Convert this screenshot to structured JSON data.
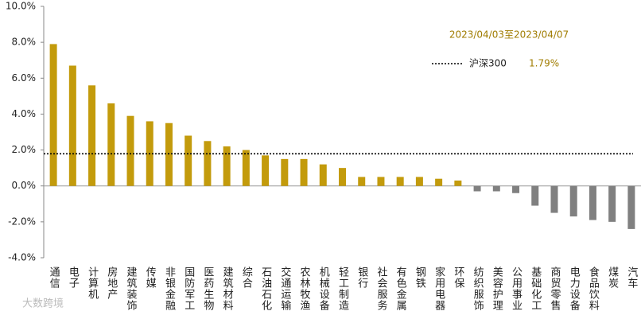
{
  "chart_data": {
    "type": "bar",
    "annotation": "2023/04/03至2023/04/07",
    "watermark": "大数跨境",
    "categories": [
      "通信",
      "电子",
      "计算机",
      "房地产",
      "建筑装饰",
      "传媒",
      "非银金融",
      "国防军工",
      "医药生物",
      "建筑材料",
      "综合",
      "石油石化",
      "交通运输",
      "农林牧渔",
      "机械设备",
      "轻工制造",
      "银行",
      "社会服务",
      "有色金属",
      "钢铁",
      "家用电器",
      "环保",
      "纺织服饰",
      "美容护理",
      "公用事业",
      "基础化工",
      "商贸零售",
      "电力设备",
      "食品饮料",
      "煤炭",
      "汽车"
    ],
    "values": [
      7.9,
      6.7,
      5.6,
      4.6,
      3.9,
      3.6,
      3.5,
      2.8,
      2.5,
      2.2,
      2.0,
      1.7,
      1.5,
      1.5,
      1.2,
      1.0,
      0.5,
      0.5,
      0.5,
      0.5,
      0.4,
      0.3,
      -0.3,
      -0.3,
      -0.4,
      -1.1,
      -1.5,
      -1.7,
      -1.9,
      -2.0,
      -2.4
    ],
    "positive_color": "#c39b0c",
    "negative_color": "#808080",
    "reference": {
      "name": "沪深300",
      "value": 1.79,
      "value_label": "1.79%",
      "color": "#000000"
    },
    "ylim": [
      -4,
      10
    ],
    "yticks": [
      {
        "value": -4,
        "label": "-4.0%"
      },
      {
        "value": -2,
        "label": "-2.0%"
      },
      {
        "value": 0,
        "label": "0.0%"
      },
      {
        "value": 2,
        "label": "2.0%"
      },
      {
        "value": 4,
        "label": "4.0%"
      },
      {
        "value": 6,
        "label": "6.0%"
      },
      {
        "value": 8,
        "label": "8.0%"
      },
      {
        "value": 10,
        "label": "10.0%"
      }
    ],
    "grid": false
  }
}
